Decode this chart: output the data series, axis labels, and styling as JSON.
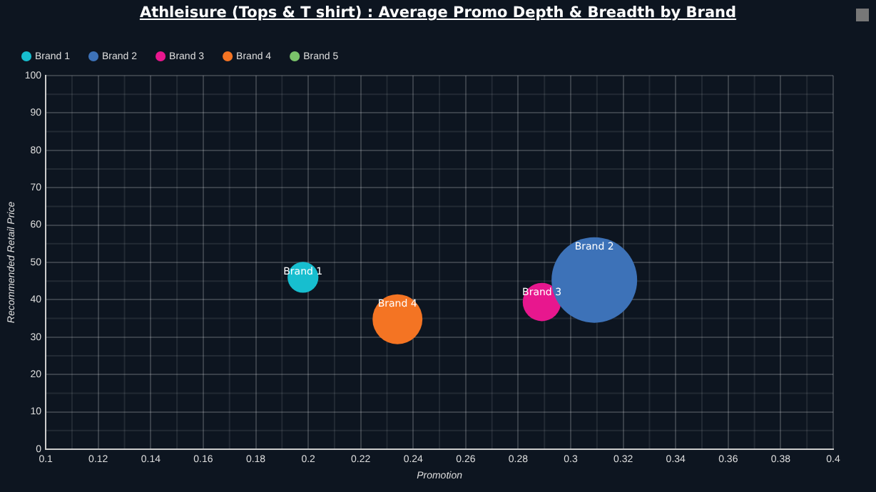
{
  "chart_data": {
    "type": "bubble",
    "title": "Athleisure (Tops & T shirt) : Average Promo Depth & Breadth by Brand",
    "xlabel": "Promotion",
    "ylabel": "Recommended Retail Price",
    "series": [
      {
        "name": "Brand 1",
        "color": "#17becf",
        "x": [
          0.198
        ],
        "values": [
          46
        ],
        "sizes": [
          0.13
        ]
      },
      {
        "name": "Brand 2",
        "color": "#3d72b8",
        "x": [
          0.309
        ],
        "values": [
          45.3
        ],
        "sizes": [
          1
        ]
      },
      {
        "name": "Brand 3",
        "color": "#e8178e",
        "x": [
          0.289
        ],
        "values": [
          39.4
        ],
        "sizes": [
          0.2
        ]
      },
      {
        "name": "Brand 4",
        "color": "#f47423",
        "x": [
          0.234
        ],
        "values": [
          34.8
        ],
        "sizes": [
          0.34
        ]
      },
      {
        "name": "Brand 5",
        "color": "#7ac36a",
        "x": [
          null
        ],
        "values": [
          null
        ],
        "sizes": [
          null
        ]
      }
    ],
    "xlim": [
      0.1,
      0.4
    ],
    "xticks": [
      0.1,
      0.12,
      0.14,
      0.16,
      0.18,
      0.2,
      0.22,
      0.24,
      0.26,
      0.28,
      0.3,
      0.32,
      0.34,
      0.36,
      0.38,
      0.4
    ],
    "ylim": [
      0,
      100
    ],
    "yticks": [
      0,
      10,
      20,
      30,
      40,
      50,
      60,
      70,
      80,
      90,
      100
    ],
    "grid": true,
    "legend": "top left"
  }
}
